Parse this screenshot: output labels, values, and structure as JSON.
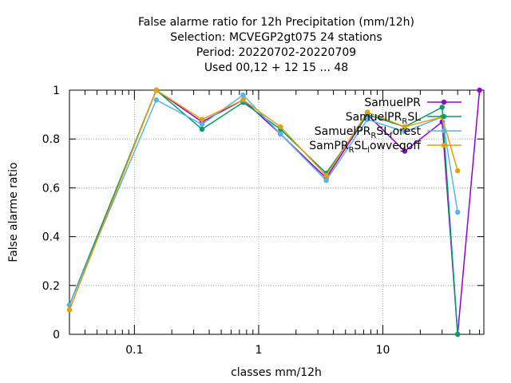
{
  "chart_data": {
    "type": "line",
    "title_lines": [
      "False alarme ratio  for 12h Precipitation (mm/12h)",
      "Selection: MCVEGP2gt075     24 stations",
      "Period: 20220702-20220709",
      "Used  00,12  + 12 15 ... 48"
    ],
    "xlabel": "classes mm/12h",
    "ylabel": "False alarme ratio",
    "x_scale": "log",
    "xlim": [
      0.03,
      65
    ],
    "ylim": [
      0,
      1
    ],
    "x_tick_labels": [
      "0.1",
      "1",
      "10"
    ],
    "y_tick_labels": [
      "0",
      "0.2",
      "0.4",
      "0.6",
      "0.8",
      "1"
    ],
    "grid": true,
    "legend_position": "top-right",
    "x": [
      0.03,
      0.15,
      0.35,
      0.75,
      1.5,
      3.5,
      7.5,
      15,
      30,
      40,
      60
    ],
    "series": [
      {
        "name_parts": [
          [
            "SamuelPR",
            ""
          ]
        ],
        "color": "#9400d3",
        "values": [
          0.12,
          1.0,
          0.87,
          0.96,
          0.82,
          0.64,
          0.9,
          0.75,
          0.87,
          0.0,
          1.0
        ]
      },
      {
        "name_parts": [
          [
            "SamuelPR",
            ""
          ],
          [
            "R",
            "sub"
          ],
          [
            "SL",
            ""
          ]
        ],
        "color": "#009e73",
        "values": [
          0.12,
          1.0,
          0.84,
          0.95,
          0.84,
          0.66,
          0.9,
          0.85,
          0.93,
          0.0,
          null
        ]
      },
      {
        "name_parts": [
          [
            "SamuelPR",
            ""
          ],
          [
            "R",
            "sub"
          ],
          [
            "SL",
            ""
          ],
          [
            "f",
            "sub"
          ],
          [
            "orest",
            ""
          ]
        ],
        "color": "#56b4e9",
        "values": [
          0.12,
          0.96,
          0.86,
          0.98,
          0.82,
          0.63,
          0.88,
          0.83,
          0.89,
          0.5,
          null
        ]
      },
      {
        "name_parts": [
          [
            "SamPR",
            ""
          ],
          [
            "R",
            "sub"
          ],
          [
            "SL",
            ""
          ],
          [
            "l",
            "sub"
          ],
          [
            "owvegoff",
            ""
          ]
        ],
        "color": "#e69f00",
        "values": [
          0.1,
          1.0,
          0.88,
          0.96,
          0.85,
          0.65,
          0.91,
          0.85,
          0.89,
          0.67,
          null
        ]
      }
    ]
  }
}
